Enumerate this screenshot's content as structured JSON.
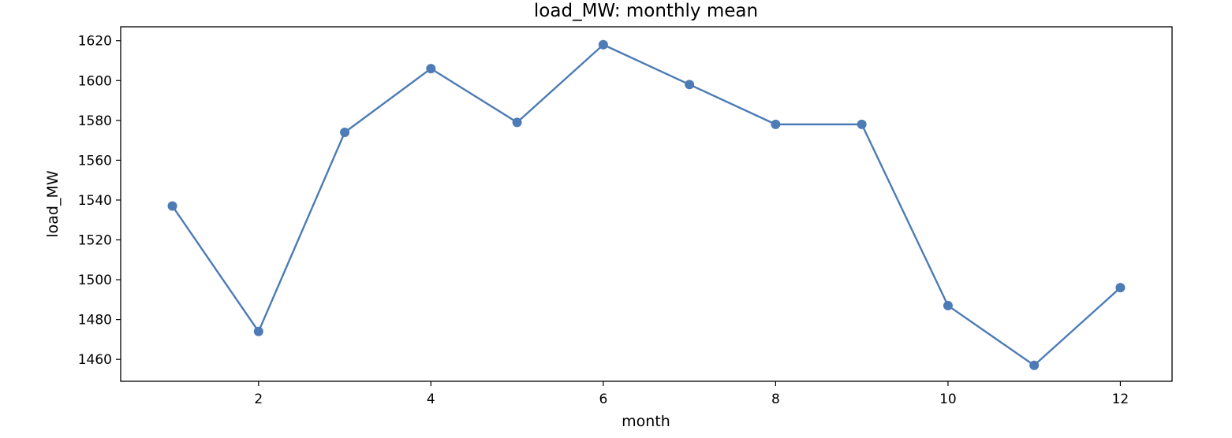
{
  "chart_data": {
    "type": "line",
    "title": "load_MW: monthly mean",
    "xlabel": "month",
    "ylabel": "load_MW",
    "xlim": [
      0.4,
      12.6
    ],
    "ylim": [
      1449,
      1627
    ],
    "xticks": [
      2,
      4,
      6,
      8,
      10,
      12
    ],
    "yticks": [
      1460,
      1480,
      1500,
      1520,
      1540,
      1560,
      1580,
      1600,
      1620
    ],
    "grid": false,
    "series": [
      {
        "color": "#4c7bb5",
        "marker": "circle",
        "x": [
          1,
          2,
          3,
          4,
          5,
          6,
          7,
          8,
          9,
          10,
          11,
          12
        ],
        "y": [
          1537,
          1474,
          1574,
          1606,
          1579,
          1618,
          1598,
          1578,
          1578,
          1487,
          1457,
          1496
        ]
      }
    ]
  }
}
